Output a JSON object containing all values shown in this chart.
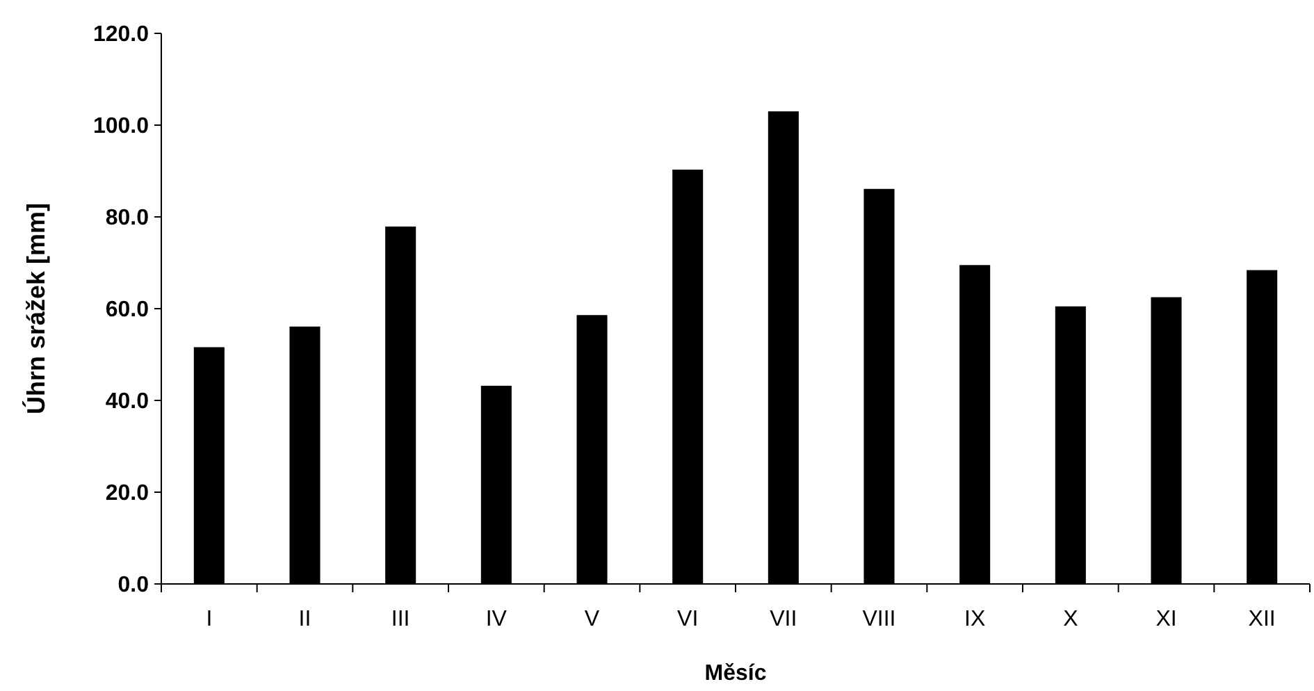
{
  "chart_data": {
    "type": "bar",
    "xlabel": "Měsíc",
    "ylabel": "Úhrn srážek [mm]",
    "categories": [
      "I",
      "II",
      "III",
      "IV",
      "V",
      "VI",
      "VII",
      "VIII",
      "IX",
      "X",
      "XI",
      "XII"
    ],
    "values": [
      51.6,
      56.1,
      77.9,
      43.2,
      58.6,
      90.3,
      103.0,
      86.1,
      69.5,
      60.5,
      62.5,
      68.4
    ],
    "color": "#000000",
    "ylim": [
      0,
      120
    ],
    "yticks": [
      {
        "value": 0,
        "label": "0.0"
      },
      {
        "value": 20,
        "label": "20.0"
      },
      {
        "value": 40,
        "label": "40.0"
      },
      {
        "value": 60,
        "label": "60.0"
      },
      {
        "value": 80,
        "label": "80.0"
      },
      {
        "value": 100,
        "label": "100.0"
      },
      {
        "value": 120,
        "label": "120.0"
      }
    ],
    "grid": false
  }
}
